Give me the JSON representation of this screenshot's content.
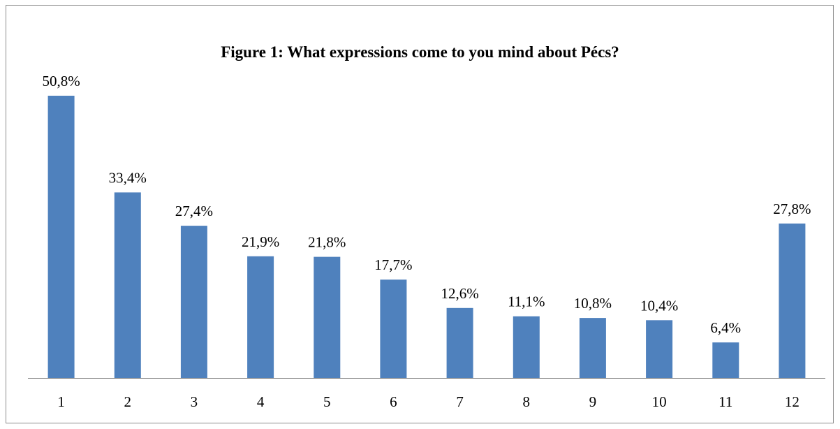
{
  "chart_data": {
    "type": "bar",
    "title": "Figure 1: What expressions come to you mind about Pécs?",
    "categories": [
      "1",
      "2",
      "3",
      "4",
      "5",
      "6",
      "7",
      "8",
      "9",
      "10",
      "11",
      "12"
    ],
    "values": [
      50.8,
      33.4,
      27.4,
      21.9,
      21.8,
      17.7,
      12.6,
      11.1,
      10.8,
      10.4,
      6.4,
      27.8
    ],
    "data_labels": [
      "50,8%",
      "33,4%",
      "27,4%",
      "21,9%",
      "21,8%",
      "17,7%",
      "12,6%",
      "11,1%",
      "10,8%",
      "10,4%",
      "6,4%",
      "27,8%"
    ],
    "xlabel": "",
    "ylabel": "",
    "ylim": [
      0,
      50.8
    ],
    "grid": false,
    "legend": "none",
    "bar_color": "#4f81bd"
  }
}
